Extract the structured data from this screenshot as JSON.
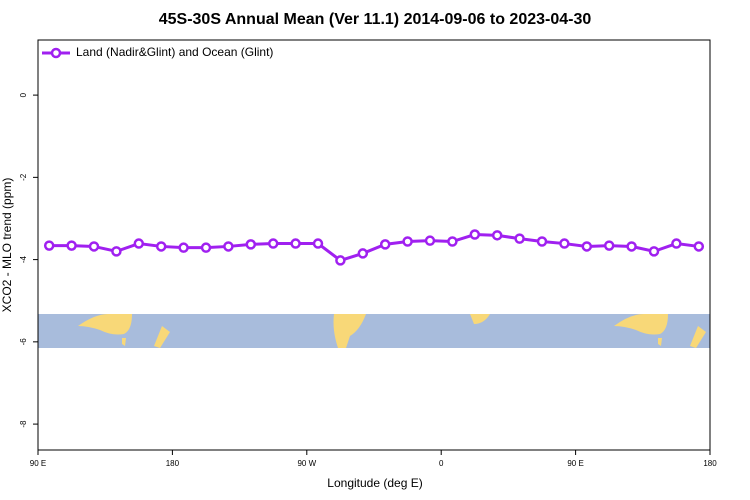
{
  "chart_data": {
    "type": "line",
    "title": "45S-30S Annual Mean (Ver 11.1)   2014-09-06 to 2023-04-30",
    "x_label": "Longitude (deg E)",
    "y_label": "XCO2 - MLO trend (ppm)",
    "legend": "top-left",
    "xlim": [
      90,
      540
    ],
    "xticks": [
      {
        "value": 90,
        "label": "90 E"
      },
      180,
      {
        "value": 270,
        "label": "90 W"
      },
      {
        "value": 360,
        "label": "0"
      },
      {
        "value": 450,
        "label": "90 E"
      },
      {
        "value": 540,
        "label": "180"
      }
    ],
    "ylim": [
      -8.63,
      1.34
    ],
    "yticks": [
      0,
      -2,
      -4,
      -6,
      -8
    ],
    "x": [
      97.5,
      112.5,
      127.5,
      142.5,
      157.5,
      172.5,
      187.5,
      202.5,
      217.5,
      232.5,
      247.5,
      262.5,
      277.5,
      292.5,
      307.5,
      322.5,
      337.5,
      352.5,
      367.5,
      382.5,
      397.5,
      412.5,
      427.5,
      442.5,
      457.5,
      472.5,
      487.5,
      502.5,
      517.5,
      532.5
    ],
    "series": [
      {
        "name": "Land (Nadir&Glint) and Ocean (Glint)",
        "color": "#a020f0",
        "values": [
          -3.66,
          -3.66,
          -3.68,
          -3.8,
          -3.61,
          -3.68,
          -3.71,
          -3.71,
          -3.68,
          -3.63,
          -3.61,
          -3.61,
          -3.61,
          -4.02,
          -3.85,
          -3.63,
          -3.56,
          -3.54,
          -3.56,
          -3.39,
          -3.41,
          -3.49,
          -3.56,
          -3.61,
          -3.68,
          -3.66,
          -3.68,
          -3.8,
          -3.61,
          -3.68
        ]
      }
    ]
  }
}
